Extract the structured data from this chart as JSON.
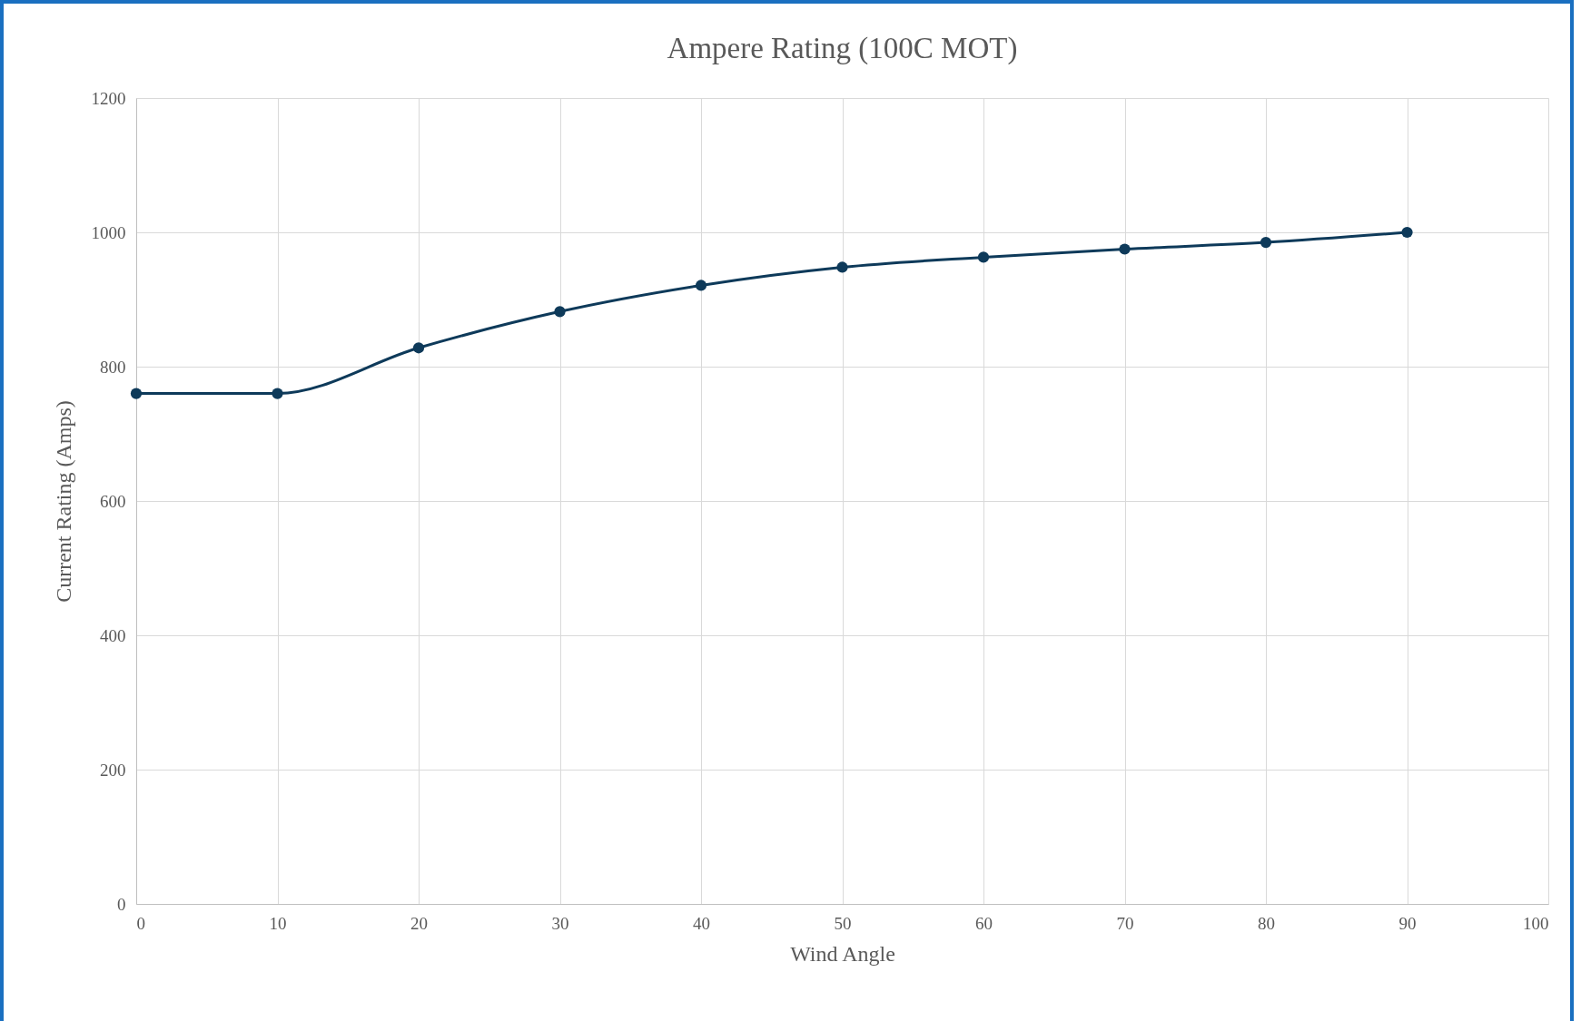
{
  "chart_data": {
    "type": "line",
    "title": "Ampere Rating (100C MOT)",
    "xlabel": "Wind Angle",
    "ylabel": "Current Rating (Amps)",
    "x": [
      0,
      10,
      20,
      30,
      40,
      50,
      60,
      70,
      80,
      90
    ],
    "series": [
      {
        "color": "#0e3a5a",
        "values": [
          760,
          760,
          828,
          882,
          921,
          948,
          963,
          975,
          985,
          1000
        ]
      }
    ],
    "xlim": [
      0,
      100
    ],
    "xticks": [
      0,
      10,
      20,
      30,
      40,
      50,
      60,
      70,
      80,
      90,
      100
    ],
    "ylim": [
      0,
      1200
    ],
    "yticks": [
      0,
      200,
      400,
      600,
      800,
      1000,
      1200
    ],
    "grid": true,
    "marker": "circle",
    "line_style": "solid"
  }
}
